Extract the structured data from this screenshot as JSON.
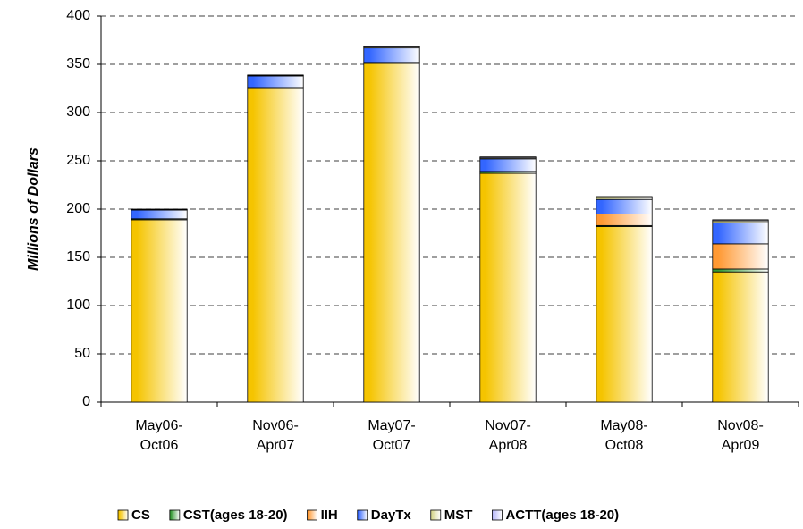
{
  "chart_data": {
    "type": "stacked_bar",
    "y_label": "Millions of Dollars",
    "categories": [
      "May06-Oct06",
      "Nov06-Apr07",
      "May07-Oct07",
      "Nov07-Apr08",
      "May08-Oct08",
      "Nov08-Apr09"
    ],
    "series": [
      {
        "name": "CS",
        "color": "#f5c400",
        "values": [
          189,
          325,
          351,
          237,
          182,
          135
        ]
      },
      {
        "name": "CST(ages 18-20)",
        "color": "#339933",
        "values": [
          1,
          1,
          1,
          2,
          1,
          3
        ]
      },
      {
        "name": "IIH",
        "color": "#ff9933",
        "values": [
          0,
          0,
          0,
          0,
          12,
          26
        ]
      },
      {
        "name": "DayTx",
        "color": "#3366ff",
        "values": [
          9,
          12,
          15,
          13,
          15,
          22
        ]
      },
      {
        "name": "MST",
        "color": "#d8d890",
        "values": [
          0.5,
          0.5,
          1,
          1,
          2,
          2
        ]
      },
      {
        "name": "ACTT(ages 18-20)",
        "color": "#b8b8f8",
        "values": [
          0.5,
          0.5,
          1,
          1,
          1,
          1
        ]
      }
    ],
    "ylim": [
      0,
      400
    ],
    "yticks": [
      0,
      50,
      100,
      150,
      200,
      250,
      300,
      350,
      400
    ],
    "grid": true,
    "legend": "bottom"
  }
}
